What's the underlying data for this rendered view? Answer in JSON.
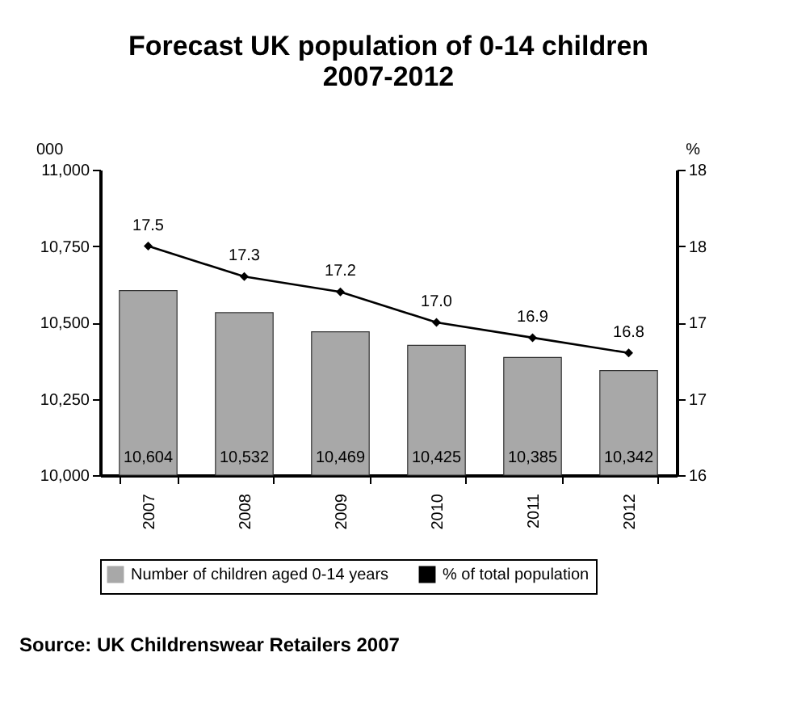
{
  "chart_data": {
    "type": "bar",
    "title": "Forecast UK population of 0-14 children\n2007-2012",
    "categories": [
      "2007",
      "2008",
      "2009",
      "2010",
      "2011",
      "2012"
    ],
    "series": [
      {
        "name": "Number of children aged 0-14 years",
        "color": "#a8a8a8",
        "values": [
          10604,
          10532,
          10469,
          10425,
          10385,
          10342
        ],
        "value_labels": [
          "10,604",
          "10,532",
          "10,469",
          "10,425",
          "10,385",
          "10,342"
        ]
      },
      {
        "name": "% of total population",
        "type": "line",
        "axis": "y2",
        "color": "#000000",
        "values": [
          17.5,
          17.3,
          17.2,
          17.0,
          16.9,
          16.8
        ],
        "value_labels": [
          "17.5",
          "17.3",
          "17.2",
          "17.0",
          "16.9",
          "16.8"
        ]
      }
    ],
    "ylabel": "000",
    "y2label": "%",
    "ylim": [
      10000,
      11000
    ],
    "yticks": [
      {
        "value": 10000,
        "label": "10,000"
      },
      {
        "value": 10250,
        "label": "10,250"
      },
      {
        "value": 10500,
        "label": "10,500"
      },
      {
        "value": 10750,
        "label": "10,750"
      },
      {
        "value": 11000,
        "label": "11,000"
      }
    ],
    "y2lim": [
      16,
      18
    ],
    "y2ticks": [
      16,
      {
        "value": 16.5,
        "label": "17"
      },
      17,
      {
        "value": 17.5,
        "label": "18"
      },
      18
    ],
    "marker": "diamond",
    "legend": "bottom",
    "annotations": [
      "Source: UK Childrenswear Retailers 2007"
    ]
  }
}
